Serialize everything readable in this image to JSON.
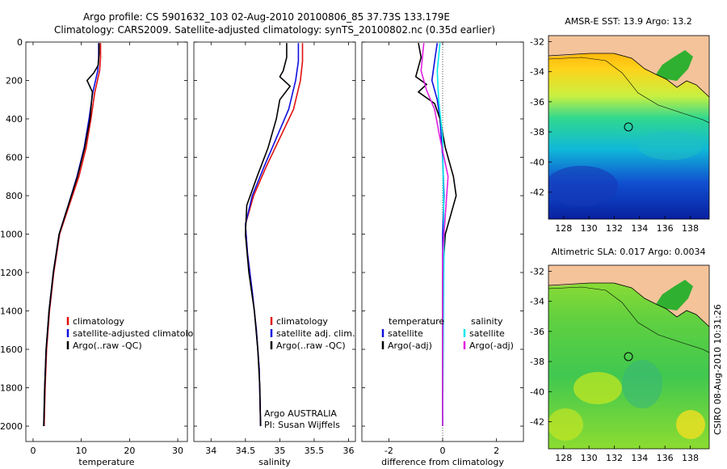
{
  "title_line1": "Argo profile: CS 5901632_103 02-Aug-2010 20100806_85 37.73S 133.179E",
  "title_line2": "Climatology: CARS2009. Satellite-adjusted climatology: synTS_20100802.nc (0.35d earlier)",
  "credit": "CSIRO 08-Aug-2010 10:31:26",
  "colors": {
    "clim": "#e01010",
    "sat": "#1010e0",
    "argo": "#000000",
    "sat_sal": "#00e8ee",
    "argo_sal": "#e020e0",
    "land": "#f4c39a"
  },
  "chart_data": [
    {
      "type": "line",
      "xlabel": "temperature",
      "xlim": [
        -1.5,
        32
      ],
      "ylim": [
        0,
        2080
      ],
      "xticks": [
        0,
        10,
        20,
        30
      ],
      "yticks": [
        0,
        200,
        400,
        600,
        800,
        1000,
        1200,
        1400,
        1600,
        1800,
        2000
      ],
      "legend": [
        "climatology",
        "satellite-adjusted climatology",
        "Argo(..raw -QC)"
      ],
      "series": [
        {
          "name": "climatology",
          "color": "clim",
          "points": [
            [
              14.0,
              5
            ],
            [
              14.0,
              80
            ],
            [
              13.8,
              150
            ],
            [
              12.8,
              260
            ],
            [
              12.0,
              400
            ],
            [
              11.0,
              550
            ],
            [
              9.5,
              700
            ],
            [
              7.5,
              850
            ],
            [
              5.5,
              1000
            ],
            [
              4.3,
              1200
            ],
            [
              3.4,
              1400
            ],
            [
              2.8,
              1600
            ],
            [
              2.5,
              1800
            ],
            [
              2.3,
              2000
            ]
          ]
        },
        {
          "name": "satellite-adjusted climatology",
          "color": "sat",
          "points": [
            [
              13.6,
              5
            ],
            [
              13.6,
              80
            ],
            [
              13.4,
              150
            ],
            [
              12.4,
              260
            ],
            [
              11.6,
              400
            ],
            [
              10.6,
              550
            ],
            [
              9.1,
              700
            ],
            [
              7.3,
              850
            ],
            [
              5.4,
              1000
            ],
            [
              4.2,
              1200
            ],
            [
              3.3,
              1400
            ],
            [
              2.7,
              1600
            ],
            [
              2.4,
              1800
            ],
            [
              2.2,
              2000
            ]
          ]
        },
        {
          "name": "Argo(..raw -QC)",
          "color": "argo",
          "points": [
            [
              13.7,
              5
            ],
            [
              13.7,
              60
            ],
            [
              13.5,
              120
            ],
            [
              12.6,
              160
            ],
            [
              11.2,
              200
            ],
            [
              12.3,
              260
            ],
            [
              11.8,
              400
            ],
            [
              10.7,
              550
            ],
            [
              9.2,
              700
            ],
            [
              7.3,
              850
            ],
            [
              5.4,
              1000
            ],
            [
              4.2,
              1200
            ],
            [
              3.3,
              1400
            ],
            [
              2.7,
              1600
            ],
            [
              2.4,
              1800
            ],
            [
              2.2,
              2000
            ]
          ]
        }
      ]
    },
    {
      "type": "line",
      "xlabel": "salinity",
      "xlim": [
        33.75,
        36.1
      ],
      "ylim": [
        0,
        2080
      ],
      "xticks": [
        34,
        34.5,
        35,
        35.5,
        36
      ],
      "legend": [
        "climatology",
        "satellite adj. clim.",
        "Argo(..raw -QC)"
      ],
      "annotations": [
        "Argo AUSTRALIA",
        "PI: Susan Wijffels"
      ],
      "series": [
        {
          "name": "climatology",
          "color": "clim",
          "points": [
            [
              35.33,
              5
            ],
            [
              35.33,
              100
            ],
            [
              35.3,
              200
            ],
            [
              35.2,
              350
            ],
            [
              35.0,
              500
            ],
            [
              34.8,
              650
            ],
            [
              34.62,
              800
            ],
            [
              34.5,
              950
            ],
            [
              34.53,
              1100
            ],
            [
              34.6,
              1300
            ],
            [
              34.66,
              1500
            ],
            [
              34.7,
              1700
            ],
            [
              34.72,
              2000
            ]
          ]
        },
        {
          "name": "satellite adj. clim.",
          "color": "sat",
          "points": [
            [
              35.27,
              5
            ],
            [
              35.27,
              100
            ],
            [
              35.23,
              200
            ],
            [
              35.13,
              350
            ],
            [
              34.95,
              500
            ],
            [
              34.77,
              650
            ],
            [
              34.6,
              800
            ],
            [
              34.5,
              950
            ],
            [
              34.53,
              1100
            ],
            [
              34.6,
              1300
            ],
            [
              34.66,
              1500
            ],
            [
              34.7,
              1700
            ],
            [
              34.72,
              2000
            ]
          ]
        },
        {
          "name": "Argo(..raw -QC)",
          "color": "argo",
          "points": [
            [
              35.1,
              5
            ],
            [
              35.1,
              80
            ],
            [
              35.05,
              150
            ],
            [
              35.0,
              180
            ],
            [
              35.15,
              230
            ],
            [
              35.0,
              300
            ],
            [
              34.95,
              400
            ],
            [
              34.83,
              550
            ],
            [
              34.67,
              700
            ],
            [
              34.52,
              850
            ],
            [
              34.5,
              1000
            ],
            [
              34.55,
              1200
            ],
            [
              34.63,
              1400
            ],
            [
              34.68,
              1600
            ],
            [
              34.71,
              1800
            ],
            [
              34.72,
              2000
            ]
          ]
        }
      ]
    },
    {
      "type": "line",
      "xlabel": "difference from climatology",
      "xlim": [
        -3,
        3
      ],
      "ylim": [
        0,
        2080
      ],
      "xticks": [
        -2,
        0,
        2
      ],
      "legend_left": [
        "temperature",
        "satellite",
        "Argo(-adj)"
      ],
      "legend_right": [
        "salinity",
        "satellite",
        "Argo(-adj)"
      ],
      "series": [
        {
          "name": "temperature satellite",
          "color": "sat",
          "points": [
            [
              -0.2,
              5
            ],
            [
              -0.3,
              100
            ],
            [
              -0.4,
              200
            ],
            [
              -0.2,
              300
            ],
            [
              -0.1,
              400
            ],
            [
              0.0,
              600
            ],
            [
              0.05,
              800
            ],
            [
              0.0,
              1000
            ],
            [
              0.0,
              2000
            ]
          ]
        },
        {
          "name": "temperature Argo(-adj)",
          "color": "argo",
          "points": [
            [
              -0.9,
              5
            ],
            [
              -0.8,
              80
            ],
            [
              -1.0,
              180
            ],
            [
              -0.6,
              220
            ],
            [
              -0.9,
              260
            ],
            [
              -0.3,
              320
            ],
            [
              -0.1,
              400
            ],
            [
              0.1,
              550
            ],
            [
              0.4,
              700
            ],
            [
              0.5,
              800
            ],
            [
              0.3,
              900
            ],
            [
              0.1,
              1000
            ],
            [
              0.0,
              1200
            ],
            [
              0.0,
              2000
            ]
          ]
        },
        {
          "name": "salinity satellite",
          "color": "sat_sal",
          "points": [
            [
              -0.1,
              5
            ],
            [
              -0.2,
              150
            ],
            [
              -0.15,
              300
            ],
            [
              0.0,
              500
            ],
            [
              0.05,
              1000
            ],
            [
              0.0,
              2000
            ]
          ]
        },
        {
          "name": "salinity Argo(-adj)",
          "color": "argo_sal",
          "points": [
            [
              -0.7,
              5
            ],
            [
              -0.8,
              150
            ],
            [
              -0.6,
              250
            ],
            [
              -0.3,
              350
            ],
            [
              -0.1,
              500
            ],
            [
              0.2,
              700
            ],
            [
              0.1,
              900
            ],
            [
              0.0,
              1100
            ],
            [
              0.0,
              2000
            ]
          ]
        }
      ]
    },
    {
      "type": "heatmap",
      "title": "AMSR-E SST: 13.9 Argo: 13.2",
      "xlim": [
        126.8,
        139.5
      ],
      "ylim": [
        -43.8,
        -31.6
      ],
      "xticks": [
        128,
        130,
        132,
        134,
        136,
        138
      ],
      "yticks": [
        -32,
        -34,
        -36,
        -38,
        -40,
        -42
      ],
      "marker": [
        133.179,
        -37.73
      ]
    },
    {
      "type": "heatmap",
      "title": "Altimetric SLA: 0.017 Argo: 0.0034",
      "xlim": [
        126.8,
        139.5
      ],
      "ylim": [
        -43.8,
        -31.6
      ],
      "xticks": [
        128,
        130,
        132,
        134,
        136,
        138
      ],
      "yticks": [
        -32,
        -34,
        -36,
        -38,
        -40,
        -42
      ],
      "marker": [
        133.179,
        -37.73
      ]
    }
  ]
}
